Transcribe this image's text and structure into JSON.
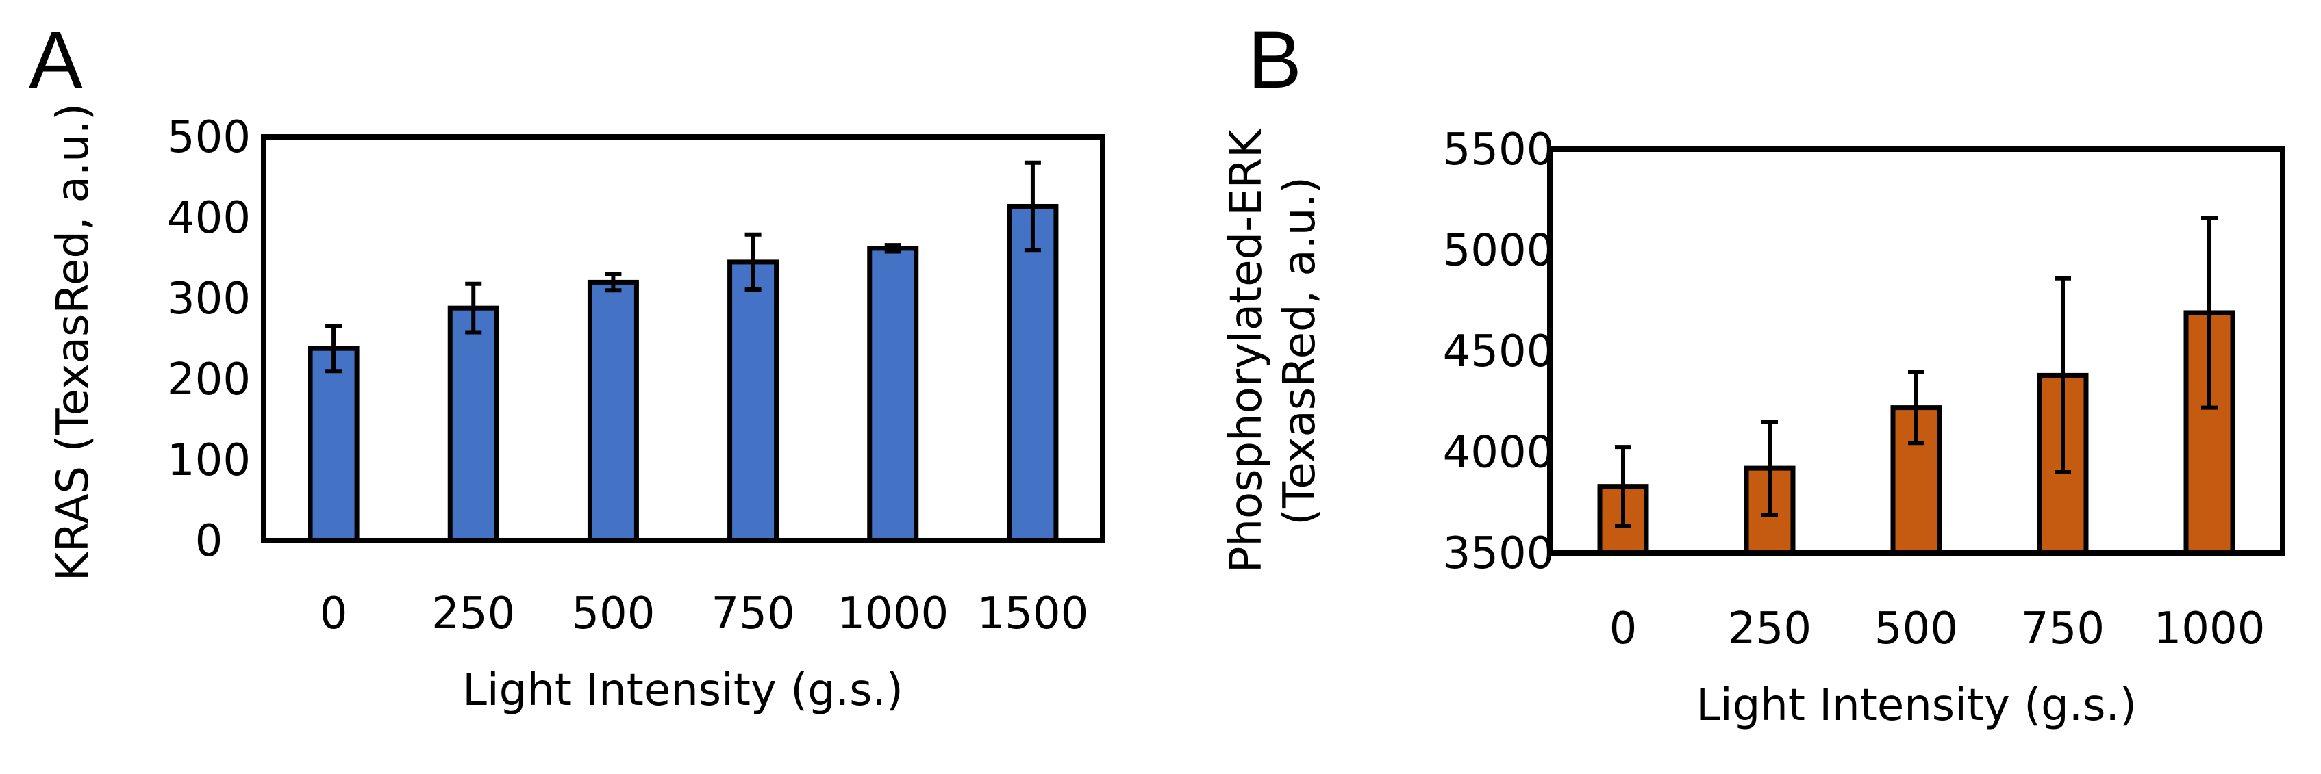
{
  "chart_data": [
    {
      "panel": "A",
      "type": "bar",
      "xlabel": "Light Intensity (g.s.)",
      "ylabel": "KRAS (TexasRed, a.u.)",
      "ylabel_lines": [
        "KRAS (TexasRed, a.u.)"
      ],
      "ylim": [
        0,
        500
      ],
      "yticks": [
        "0",
        "100",
        "200",
        "300",
        "400",
        "500"
      ],
      "categories": [
        "0",
        "250",
        "500",
        "750",
        "1000",
        "1500"
      ],
      "values": [
        238,
        288,
        320,
        345,
        362,
        414
      ],
      "errors": [
        28,
        30,
        10,
        34,
        4,
        54
      ],
      "color": "#4472C4",
      "grid": false
    },
    {
      "panel": "B",
      "type": "bar",
      "xlabel": "Light Intensity (g.s.)",
      "ylabel": "Phosphorylated-ERK (TexasRed, a.u.)",
      "ylabel_lines": [
        "Phosphorylated-ERK",
        "(TexasRed, a.u.)"
      ],
      "ylim": [
        3500,
        5500
      ],
      "yticks": [
        "3500",
        "4000",
        "4500",
        "5000",
        "5500"
      ],
      "categories": [
        "0",
        "250",
        "500",
        "750",
        "1000"
      ],
      "values": [
        3830,
        3920,
        4220,
        4380,
        4690
      ],
      "errors": [
        195,
        230,
        175,
        480,
        470
      ],
      "color": "#C55A11",
      "grid": false
    }
  ]
}
